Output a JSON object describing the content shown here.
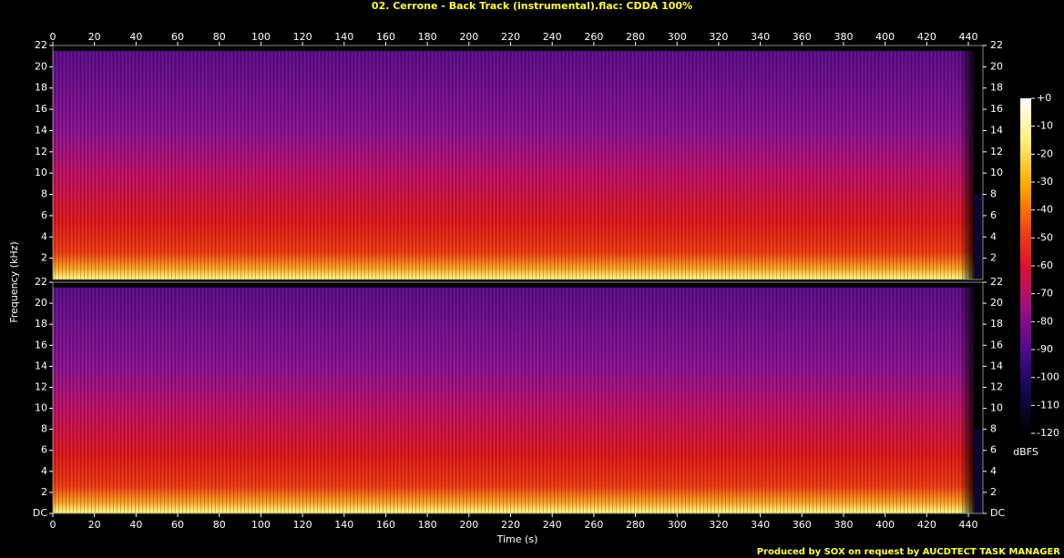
{
  "chart_data": {
    "type": "spectrogram",
    "title": "02. Cerrone - Back Track (instrumental).flac: CDDA 100%",
    "annotation": "Produced by SOX on request by AUCDTECT TASK MANAGER",
    "x_label": "Time (s)",
    "y_label": "Frequency (kHz)",
    "colorbar_label": "dBFS",
    "xlim": [
      0,
      447
    ],
    "xticks": [
      0,
      20,
      40,
      60,
      80,
      100,
      120,
      140,
      160,
      180,
      200,
      220,
      240,
      260,
      280,
      300,
      320,
      340,
      360,
      380,
      400,
      420,
      440
    ],
    "channels": [
      {
        "ylim": [
          0,
          22
        ],
        "yticks": [
          2,
          4,
          6,
          8,
          10,
          12,
          14,
          16,
          18,
          20,
          22
        ]
      },
      {
        "ylim": [
          0,
          22
        ],
        "yticks": [
          {
            "value": 0,
            "label": "DC"
          },
          2,
          4,
          6,
          8,
          10,
          12,
          14,
          16,
          18,
          20,
          22
        ]
      }
    ],
    "colorbar": {
      "lim": [
        -120,
        0
      ],
      "ticks": [
        {
          "value": 0,
          "label": "+0"
        },
        -10,
        -20,
        -30,
        -40,
        -50,
        -60,
        -70,
        -80,
        -90,
        -100,
        -110,
        -120
      ]
    }
  }
}
